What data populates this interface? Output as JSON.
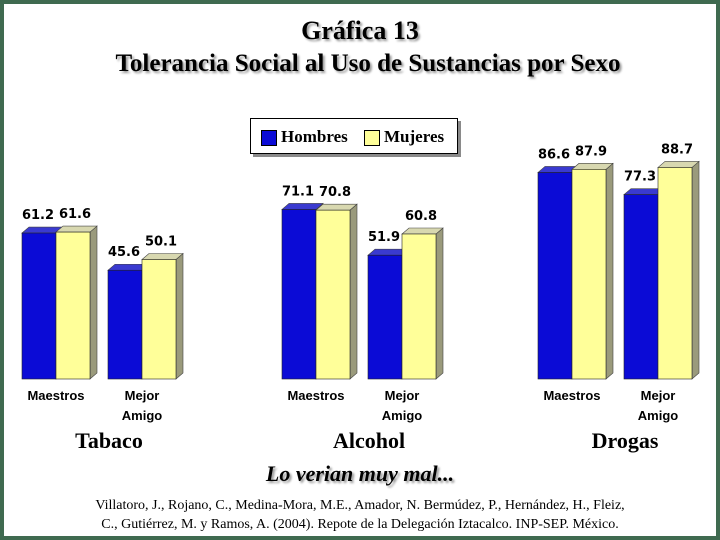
{
  "title_line1": "Gráfica 13",
  "title_line2": "Tolerancia Social al Uso de Sustancias por Sexo",
  "subtitle": "Lo verian muy mal...",
  "citation_line1": "Villatoro, J., Rojano, C., Medina-Mora, M.E., Amador, N. Bermúdez, P., Hernández, H., Fleiz,",
  "citation_line2": "C., Gutiérrez, M. y Ramos, A. (2004). Repote de la Delegación Iztacalco. INP-SEP. México.",
  "colors": {
    "hombres": "#0b0bd6",
    "mujeres": "#ffff99",
    "background": "#3f6a50"
  },
  "chart_data": {
    "type": "bar",
    "legend_position": "top-center",
    "groups": [
      {
        "name": "Tabaco",
        "categories": [
          {
            "label": [
              "Maestros"
            ],
            "values": [
              61.2,
              61.6
            ],
            "value_labels": [
              "61.2",
              "61.6"
            ]
          },
          {
            "label": [
              "Mejor",
              "Amigo"
            ],
            "values": [
              45.6,
              50.1
            ],
            "value_labels": [
              "45.6",
              "50.1"
            ]
          }
        ]
      },
      {
        "name": "Alcohol",
        "categories": [
          {
            "label": [
              "Maestros"
            ],
            "values": [
              71.1,
              70.8
            ],
            "value_labels": [
              "71.1",
              "70.8"
            ]
          },
          {
            "label": [
              "Mejor",
              "Amigo"
            ],
            "values": [
              51.9,
              60.8
            ],
            "value_labels": [
              "51.9",
              "60.8"
            ]
          }
        ]
      },
      {
        "name": "Drogas",
        "categories": [
          {
            "label": [
              "Maestros"
            ],
            "values": [
              86.6,
              87.9
            ],
            "value_labels": [
              "86.6",
              "87.9"
            ]
          },
          {
            "label": [
              "Mejor",
              "Amigo"
            ],
            "values": [
              77.3,
              88.7
            ],
            "value_labels": [
              "77.3",
              "88.7"
            ]
          }
        ]
      }
    ],
    "series": [
      {
        "name": "Hombres"
      },
      {
        "name": "Mujeres"
      }
    ]
  }
}
